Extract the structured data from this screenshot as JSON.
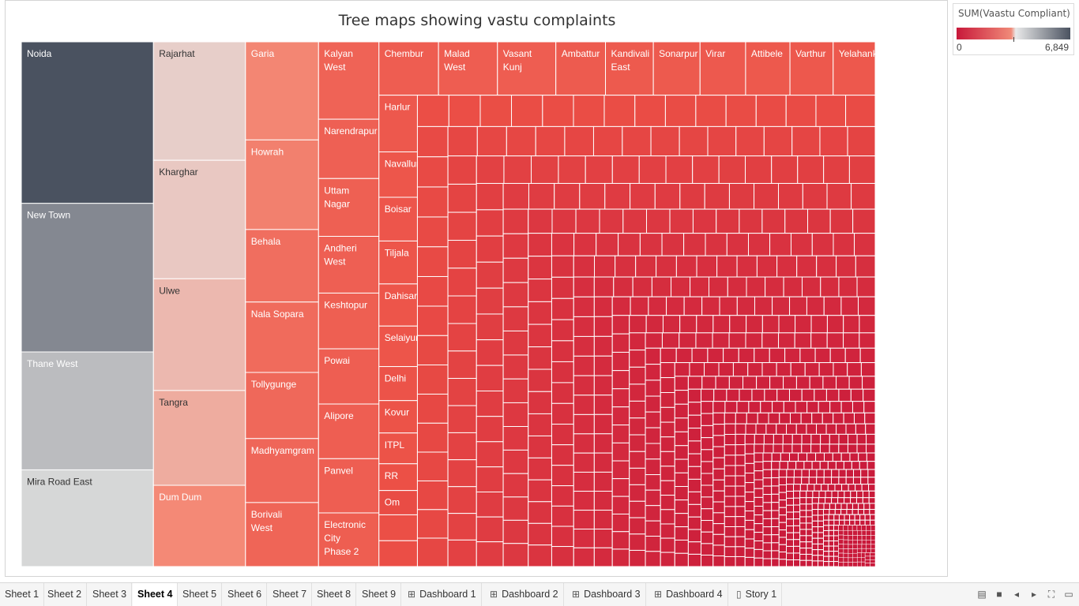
{
  "chart_data": {
    "type": "treemap",
    "title": "Tree maps showing vastu complaints",
    "color_measure": "SUM(Vaastu Compliant)",
    "color_range": [
      0,
      6849
    ],
    "legend_min": "0",
    "legend_max": "6,849",
    "colors": {
      "low": "#c8183a",
      "mid": "#d8d8d8",
      "high": "#4a5260"
    },
    "labeled_items": [
      {
        "name": "Noida",
        "size": 6849,
        "color_value": 6849
      },
      {
        "name": "New Town",
        "size": 6300,
        "color_value": 5600
      },
      {
        "name": "Thane West",
        "size": 5000,
        "color_value": 4400
      },
      {
        "name": "Mira Road East",
        "size": 4100,
        "color_value": 3800
      },
      {
        "name": "Rajarhat",
        "size": 3500,
        "color_value": 3450
      },
      {
        "name": "Kharghar",
        "size": 3500,
        "color_value": 3350
      },
      {
        "name": "Ulwe",
        "size": 3300,
        "color_value": 3100
      },
      {
        "name": "Tangra",
        "size": 2800,
        "color_value": 2900
      },
      {
        "name": "Dum Dum",
        "size": 2400,
        "color_value": 2300
      },
      {
        "name": "Garia",
        "size": 2300,
        "color_value": 2200
      },
      {
        "name": "Howrah",
        "size": 2100,
        "color_value": 2000
      },
      {
        "name": "Behala",
        "size": 1700,
        "color_value": 1400
      },
      {
        "name": "Nala Sopara",
        "size": 1650,
        "color_value": 1300
      },
      {
        "name": "Tollygunge",
        "size": 1550,
        "color_value": 1200
      },
      {
        "name": "Madhyamgram",
        "size": 1500,
        "color_value": 1150
      },
      {
        "name": "Borivali West",
        "size": 1500,
        "color_value": 1100
      },
      {
        "name": "Kalyan West",
        "size": 1500,
        "color_value": 1050
      },
      {
        "name": "Narendrapur",
        "size": 1150,
        "color_value": 950
      },
      {
        "name": "Uttam Nagar",
        "size": 1120,
        "color_value": 930
      },
      {
        "name": "Andheri West",
        "size": 1100,
        "color_value": 910
      },
      {
        "name": "Keshtopur",
        "size": 1080,
        "color_value": 900
      },
      {
        "name": "Powai",
        "size": 1070,
        "color_value": 890
      },
      {
        "name": "Alipore",
        "size": 1060,
        "color_value": 880
      },
      {
        "name": "Panvel",
        "size": 1050,
        "color_value": 870
      },
      {
        "name": "Electronic City Phase 2",
        "size": 1040,
        "color_value": 860
      },
      {
        "name": "Chembur",
        "size": 1020,
        "color_value": 850
      },
      {
        "name": "Malad West",
        "size": 1010,
        "color_value": 840
      },
      {
        "name": "Vasant Kunj",
        "size": 1000,
        "color_value": 830
      },
      {
        "name": "Ambattur",
        "size": 850,
        "color_value": 760
      },
      {
        "name": "Kandivali East",
        "size": 820,
        "color_value": 740
      },
      {
        "name": "Sonarpur",
        "size": 800,
        "color_value": 730
      },
      {
        "name": "Virar",
        "size": 780,
        "color_value": 720
      },
      {
        "name": "Attibele",
        "size": 760,
        "color_value": 700
      },
      {
        "name": "Varthur",
        "size": 740,
        "color_value": 690
      },
      {
        "name": "Yelahanka",
        "size": 720,
        "color_value": 680
      },
      {
        "name": "Harlur",
        "size": 700,
        "color_value": 670
      },
      {
        "name": "Navallur",
        "size": 560,
        "color_value": 600
      },
      {
        "name": "Boisar",
        "size": 540,
        "color_value": 590
      },
      {
        "name": "Tiljala",
        "size": 530,
        "color_value": 580
      },
      {
        "name": "Dahisar",
        "size": 520,
        "color_value": 570
      },
      {
        "name": "Selaiyur",
        "size": 500,
        "color_value": 560
      },
      {
        "name": "Delhi",
        "size": 420,
        "color_value": 520
      },
      {
        "name": "Kovur",
        "size": 400,
        "color_value": 510
      },
      {
        "name": "ITPL",
        "size": 380,
        "color_value": 500
      },
      {
        "name": "RR",
        "size": 330,
        "color_value": 420
      },
      {
        "name": "Om",
        "size": 300,
        "color_value": 380
      }
    ]
  },
  "legend": {
    "title": "SUM(Vaastu Compliant)",
    "min_label": "0",
    "max_label": "6,849"
  },
  "tabs": [
    {
      "label": "Sheet 1",
      "icon": "none",
      "active": false
    },
    {
      "label": "Sheet 2",
      "icon": "none",
      "active": false
    },
    {
      "label": "Sheet 3",
      "icon": "none",
      "active": false
    },
    {
      "label": "Sheet 4",
      "icon": "none",
      "active": true
    },
    {
      "label": "Sheet 5",
      "icon": "none",
      "active": false
    },
    {
      "label": "Sheet 6",
      "icon": "none",
      "active": false
    },
    {
      "label": "Sheet 7",
      "icon": "none",
      "active": false
    },
    {
      "label": "Sheet 8",
      "icon": "none",
      "active": false
    },
    {
      "label": "Sheet 9",
      "icon": "none",
      "active": false
    },
    {
      "label": "Dashboard 1",
      "icon": "dashboard-icon",
      "active": false
    },
    {
      "label": "Dashboard 2",
      "icon": "dashboard-icon",
      "active": false
    },
    {
      "label": "Dashboard 3",
      "icon": "dashboard-icon",
      "active": false
    },
    {
      "label": "Dashboard 4",
      "icon": "dashboard-icon",
      "active": false
    },
    {
      "label": "Story 1",
      "icon": "story-icon",
      "active": false
    }
  ],
  "nav_icons": [
    "filmstrip-view-icon",
    "tab-view-icon",
    "prev-sheet-icon",
    "next-sheet-icon",
    "fit-screen-icon",
    "presentation-mode-icon"
  ]
}
